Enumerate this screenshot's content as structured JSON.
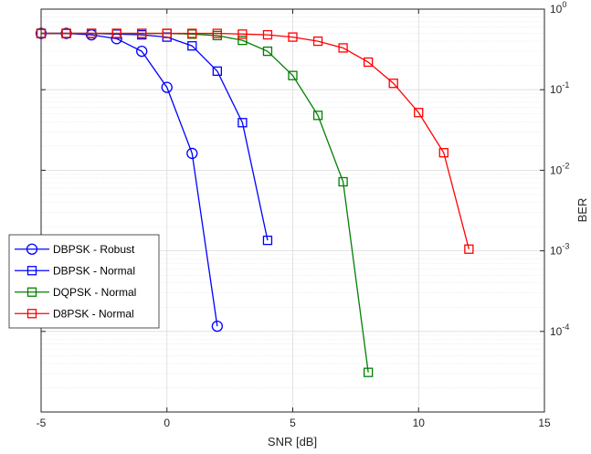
{
  "chart_data": {
    "type": "line",
    "title": "",
    "xlabel": "SNR [dB]",
    "ylabel": "BER",
    "xlim": [
      -5,
      15
    ],
    "ylim": [
      1e-05,
      1
    ],
    "yscale": "log",
    "y_axis_side": "right",
    "grid": true,
    "legend_position": "lower-left",
    "x_ticks": [
      -5,
      0,
      5,
      10,
      15
    ],
    "x_tick_labels": [
      "-5",
      "0",
      "5",
      "10",
      "15"
    ],
    "y_ticks": [
      0.0001,
      0.001,
      0.01,
      0.1,
      1
    ],
    "y_tick_bases": [
      "10",
      "10",
      "10",
      "10",
      "10"
    ],
    "y_tick_exponents": [
      "-4",
      "-3",
      "-2",
      "-1",
      "0"
    ],
    "series": [
      {
        "name": "DBPSK - Robust",
        "marker": "circle",
        "color": "#0000ff",
        "x": [
          -5,
          -4,
          -3,
          -2,
          -1,
          0,
          1,
          2
        ],
        "y": [
          0.5,
          0.5,
          0.48,
          0.43,
          0.3,
          0.107,
          0.0162,
          0.000116
        ]
      },
      {
        "name": "DBPSK - Normal",
        "marker": "square",
        "color": "#0000ff",
        "x": [
          -5,
          -4,
          -3,
          -2,
          -1,
          0,
          1,
          2,
          3,
          4
        ],
        "y": [
          0.5,
          0.5,
          0.5,
          0.49,
          0.48,
          0.45,
          0.35,
          0.17,
          0.039,
          0.00135
        ]
      },
      {
        "name": "DQPSK - Normal",
        "marker": "square",
        "color": "#008000",
        "x": [
          -5,
          -4,
          -3,
          -2,
          -1,
          0,
          1,
          2,
          3,
          4,
          5,
          6,
          7,
          8
        ],
        "y": [
          0.5,
          0.5,
          0.5,
          0.5,
          0.5,
          0.5,
          0.49,
          0.47,
          0.41,
          0.3,
          0.15,
          0.048,
          0.0072,
          3.1e-05
        ]
      },
      {
        "name": "D8PSK - Normal",
        "marker": "square",
        "color": "#ff0000",
        "x": [
          -5,
          -4,
          -3,
          -2,
          -1,
          0,
          1,
          2,
          3,
          4,
          5,
          6,
          7,
          8,
          9,
          10,
          11,
          12
        ],
        "y": [
          0.5,
          0.5,
          0.5,
          0.5,
          0.5,
          0.5,
          0.5,
          0.5,
          0.49,
          0.48,
          0.45,
          0.4,
          0.33,
          0.22,
          0.12,
          0.052,
          0.0165,
          0.00105
        ]
      }
    ]
  }
}
